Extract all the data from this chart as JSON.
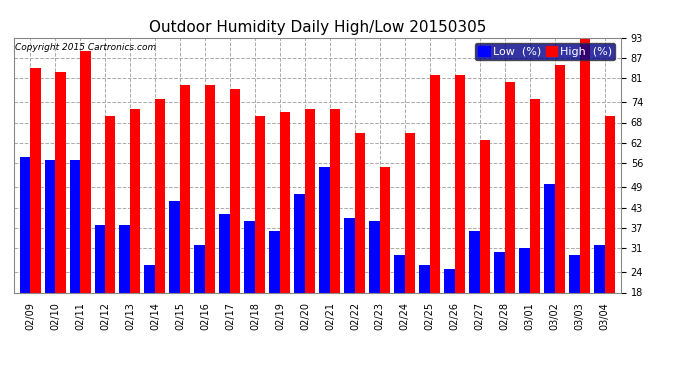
{
  "title": "Outdoor Humidity Daily High/Low 20150305",
  "copyright": "Copyright 2015 Cartronics.com",
  "dates": [
    "02/09",
    "02/10",
    "02/11",
    "02/12",
    "02/13",
    "02/14",
    "02/15",
    "02/16",
    "02/17",
    "02/18",
    "02/19",
    "02/20",
    "02/21",
    "02/22",
    "02/23",
    "02/24",
    "02/25",
    "02/26",
    "02/27",
    "02/28",
    "03/01",
    "03/02",
    "03/03",
    "03/04"
  ],
  "high": [
    84,
    83,
    89,
    70,
    72,
    75,
    79,
    79,
    78,
    70,
    71,
    72,
    72,
    65,
    55,
    65,
    82,
    82,
    63,
    80,
    75,
    85,
    94,
    70
  ],
  "low": [
    58,
    57,
    57,
    38,
    38,
    26,
    45,
    32,
    41,
    39,
    36,
    47,
    55,
    40,
    39,
    29,
    26,
    25,
    36,
    30,
    31,
    50,
    29,
    32
  ],
  "ylim": [
    18,
    93
  ],
  "yticks": [
    18,
    24,
    31,
    37,
    43,
    49,
    56,
    62,
    68,
    74,
    81,
    87,
    93
  ],
  "high_color": "#ff0000",
  "low_color": "#0000ff",
  "bg_color": "#ffffff",
  "grid_color": "#aaaaaa",
  "bar_width": 0.42,
  "title_fontsize": 11,
  "tick_fontsize": 7,
  "legend_fontsize": 8
}
